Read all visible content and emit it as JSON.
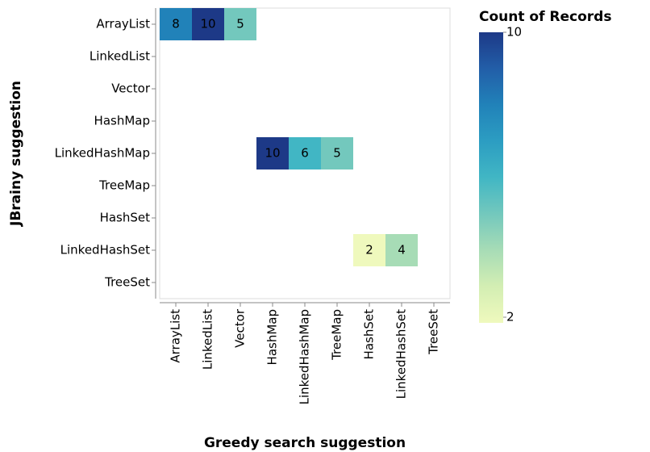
{
  "chart_data": {
    "type": "heatmap",
    "x_label": "Greedy search suggestion",
    "y_label": "JBrainy suggestion",
    "x_categories": [
      "ArrayList",
      "LinkedList",
      "Vector",
      "HashMap",
      "LinkedHashMap",
      "TreeMap",
      "HashSet",
      "LinkedHashSet",
      "TreeSet"
    ],
    "y_categories": [
      "ArrayList",
      "LinkedList",
      "Vector",
      "HashMap",
      "LinkedHashMap",
      "TreeMap",
      "HashSet",
      "LinkedHashSet",
      "TreeSet"
    ],
    "values": [
      [
        8,
        10,
        5,
        null,
        null,
        null,
        null,
        null,
        null
      ],
      [
        null,
        null,
        null,
        null,
        null,
        null,
        null,
        null,
        null
      ],
      [
        null,
        null,
        null,
        null,
        null,
        null,
        null,
        null,
        null
      ],
      [
        null,
        null,
        null,
        null,
        null,
        null,
        null,
        null,
        null
      ],
      [
        null,
        null,
        null,
        10,
        6,
        5,
        null,
        null,
        null
      ],
      [
        null,
        null,
        null,
        null,
        null,
        null,
        null,
        null,
        null
      ],
      [
        null,
        null,
        null,
        null,
        null,
        null,
        null,
        null,
        null
      ],
      [
        null,
        null,
        null,
        null,
        null,
        null,
        2,
        4,
        null
      ],
      [
        null,
        null,
        null,
        null,
        null,
        null,
        null,
        null,
        null
      ]
    ],
    "legend_title": "Count of Records",
    "colorlim": [
      2,
      10
    ],
    "colorticks": [
      2,
      10
    ],
    "colormap": [
      "#eff9bd",
      "#d3eeb3",
      "#a7dcb6",
      "#73c8bd",
      "#41b6c4",
      "#2c9dc2",
      "#2182b9",
      "#225ea8",
      "#1d3987"
    ]
  }
}
